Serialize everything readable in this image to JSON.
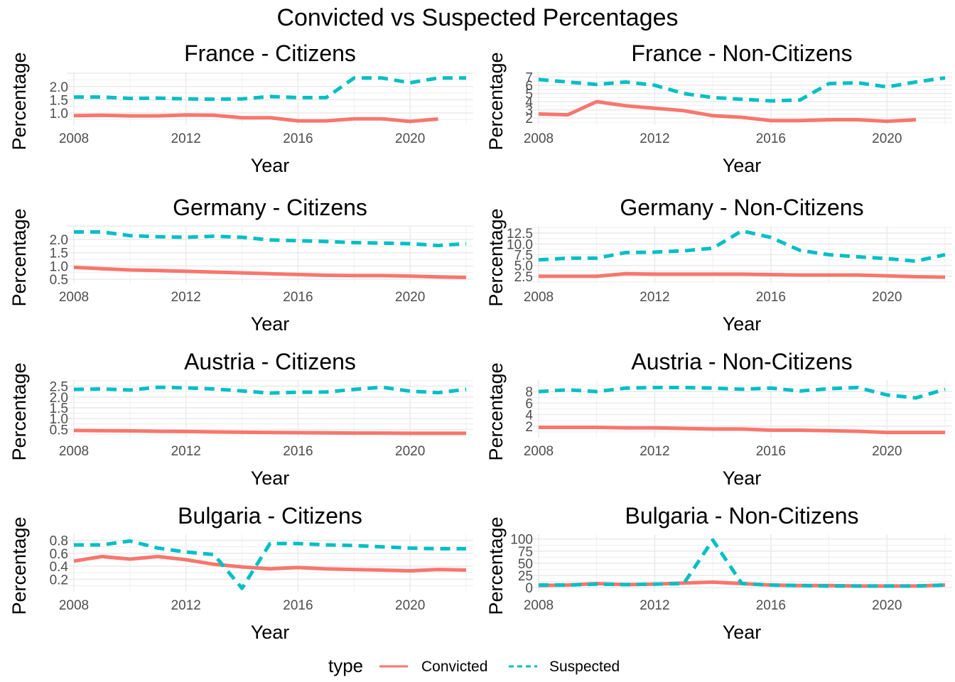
{
  "figure": {
    "title": "Convicted vs Suspected Percentages",
    "legend": {
      "title": "type",
      "placement": "bottom",
      "items": [
        {
          "name": "Convicted",
          "color": "#F8766D",
          "dash": "solid"
        },
        {
          "name": "Suspected",
          "color": "#00BFC4",
          "dash": "dashed"
        }
      ]
    }
  },
  "chart_data": [
    {
      "type": "line",
      "title": "France - Citizens",
      "xlabel": "Year",
      "ylabel": "Percentage",
      "xlim": [
        2008,
        2022
      ],
      "ylim": [
        0.65,
        2.45
      ],
      "xticks": [
        2008,
        2012,
        2016,
        2020
      ],
      "yticks": [
        1.0,
        1.5,
        2.0
      ],
      "yticklabels": [
        "1.0",
        "1.5",
        "2.0"
      ],
      "grid": true,
      "series": [
        {
          "name": "Convicted",
          "x": [
            2008,
            2009,
            2010,
            2011,
            2012,
            2013,
            2014,
            2015,
            2016,
            2017,
            2018,
            2019,
            2020,
            2021
          ],
          "values": [
            0.9,
            0.91,
            0.89,
            0.89,
            0.92,
            0.91,
            0.82,
            0.82,
            0.7,
            0.7,
            0.78,
            0.78,
            0.68,
            0.77
          ]
        },
        {
          "name": "Suspected",
          "x": [
            2008,
            2009,
            2010,
            2011,
            2012,
            2013,
            2014,
            2015,
            2016,
            2017,
            2018,
            2019,
            2020,
            2021,
            2022
          ],
          "values": [
            1.6,
            1.6,
            1.55,
            1.56,
            1.53,
            1.52,
            1.53,
            1.62,
            1.58,
            1.58,
            2.32,
            2.32,
            2.14,
            2.32,
            2.32
          ]
        }
      ]
    },
    {
      "type": "line",
      "title": "France - Non-Citizens",
      "xlabel": "Year",
      "ylabel": "Percentage",
      "xlim": [
        2008,
        2022
      ],
      "ylim": [
        1.5,
        7.3
      ],
      "xticks": [
        2008,
        2012,
        2016,
        2020
      ],
      "yticks": [
        2,
        3,
        4,
        5,
        6,
        7
      ],
      "yticklabels": [
        "2",
        "3",
        "4",
        "5",
        "6",
        "7"
      ],
      "grid": true,
      "series": [
        {
          "name": "Convicted",
          "x": [
            2008,
            2009,
            2010,
            2011,
            2012,
            2013,
            2014,
            2015,
            2016,
            2017,
            2018,
            2019,
            2020,
            2021
          ],
          "values": [
            2.5,
            2.4,
            4.0,
            3.5,
            3.2,
            2.9,
            2.3,
            2.1,
            1.7,
            1.7,
            1.8,
            1.8,
            1.6,
            1.8
          ]
        },
        {
          "name": "Suspected",
          "x": [
            2008,
            2009,
            2010,
            2011,
            2012,
            2013,
            2014,
            2015,
            2016,
            2017,
            2018,
            2019,
            2020,
            2021,
            2022
          ],
          "values": [
            6.7,
            6.4,
            6.1,
            6.4,
            6.0,
            5.0,
            4.5,
            4.3,
            4.1,
            4.2,
            6.2,
            6.3,
            5.8,
            6.4,
            6.9
          ]
        }
      ]
    },
    {
      "type": "line",
      "title": "Germany - Citizens",
      "xlabel": "Year",
      "ylabel": "Percentage",
      "xlim": [
        2008,
        2022
      ],
      "ylim": [
        0.45,
        2.4
      ],
      "xticks": [
        2008,
        2012,
        2016,
        2020
      ],
      "yticks": [
        0.5,
        1.0,
        1.5,
        2.0
      ],
      "yticklabels": [
        "0.5",
        "1.0",
        "1.5",
        "2.0"
      ],
      "grid": true,
      "series": [
        {
          "name": "Convicted",
          "x": [
            2008,
            2009,
            2010,
            2011,
            2012,
            2013,
            2014,
            2015,
            2016,
            2017,
            2018,
            2019,
            2020,
            2021,
            2022
          ],
          "values": [
            0.95,
            0.9,
            0.85,
            0.83,
            0.8,
            0.77,
            0.74,
            0.71,
            0.68,
            0.65,
            0.64,
            0.64,
            0.62,
            0.59,
            0.57
          ]
        },
        {
          "name": "Suspected",
          "x": [
            2008,
            2009,
            2010,
            2011,
            2012,
            2013,
            2014,
            2015,
            2016,
            2017,
            2018,
            2019,
            2020,
            2021,
            2022
          ],
          "values": [
            2.28,
            2.28,
            2.14,
            2.1,
            2.08,
            2.12,
            2.08,
            1.98,
            1.95,
            1.92,
            1.88,
            1.86,
            1.84,
            1.77,
            1.84
          ]
        }
      ]
    },
    {
      "type": "line",
      "title": "Germany - Non-Citizens",
      "xlabel": "Year",
      "ylabel": "Percentage",
      "xlim": [
        2008,
        2022
      ],
      "ylim": [
        1.5,
        13.5
      ],
      "xticks": [
        2008,
        2012,
        2016,
        2020
      ],
      "yticks": [
        2.5,
        5.0,
        7.5,
        10.0,
        12.5
      ],
      "yticklabels": [
        "2.5",
        "5.0",
        "7.5",
        "10.0",
        "12.5"
      ],
      "grid": true,
      "series": [
        {
          "name": "Convicted",
          "x": [
            2008,
            2009,
            2010,
            2011,
            2012,
            2013,
            2014,
            2015,
            2016,
            2017,
            2018,
            2019,
            2020,
            2021,
            2022
          ],
          "values": [
            2.5,
            2.5,
            2.5,
            3.1,
            3.0,
            3.0,
            3.0,
            3.0,
            2.9,
            2.8,
            2.8,
            2.8,
            2.6,
            2.4,
            2.3
          ]
        },
        {
          "name": "Suspected",
          "x": [
            2008,
            2009,
            2010,
            2011,
            2012,
            2013,
            2014,
            2015,
            2016,
            2017,
            2018,
            2019,
            2020,
            2021,
            2022
          ],
          "values": [
            6.3,
            6.7,
            6.7,
            8.0,
            8.1,
            8.4,
            9.0,
            13.0,
            11.5,
            8.5,
            7.5,
            7.0,
            6.6,
            6.0,
            7.5
          ]
        }
      ]
    },
    {
      "type": "line",
      "title": "Austria - Citizens",
      "xlabel": "Year",
      "ylabel": "Percentage",
      "xlim": [
        2008,
        2022
      ],
      "ylim": [
        0.25,
        2.65
      ],
      "xticks": [
        2008,
        2012,
        2016,
        2020
      ],
      "yticks": [
        0.5,
        1.0,
        1.5,
        2.0,
        2.5
      ],
      "yticklabels": [
        "0.5",
        "1.0",
        "1.5",
        "2.0",
        "2.5"
      ],
      "grid": true,
      "series": [
        {
          "name": "Convicted",
          "x": [
            2008,
            2009,
            2010,
            2011,
            2012,
            2013,
            2014,
            2015,
            2016,
            2017,
            2018,
            2019,
            2020,
            2021,
            2022
          ],
          "values": [
            0.45,
            0.44,
            0.43,
            0.41,
            0.4,
            0.38,
            0.37,
            0.36,
            0.35,
            0.34,
            0.33,
            0.33,
            0.32,
            0.32,
            0.32
          ]
        },
        {
          "name": "Suspected",
          "x": [
            2008,
            2009,
            2010,
            2011,
            2012,
            2013,
            2014,
            2015,
            2016,
            2017,
            2018,
            2019,
            2020,
            2021,
            2022
          ],
          "values": [
            2.35,
            2.37,
            2.32,
            2.45,
            2.42,
            2.37,
            2.28,
            2.18,
            2.22,
            2.23,
            2.35,
            2.45,
            2.27,
            2.2,
            2.35
          ]
        }
      ]
    },
    {
      "type": "line",
      "title": "Austria - Non-Citizens",
      "xlabel": "Year",
      "ylabel": "Percentage",
      "xlim": [
        2008,
        2022
      ],
      "ylim": [
        0.5,
        9.5
      ],
      "xticks": [
        2008,
        2012,
        2016,
        2020
      ],
      "yticks": [
        2,
        4,
        6,
        8
      ],
      "yticklabels": [
        "2",
        "4",
        "6",
        "8"
      ],
      "grid": true,
      "series": [
        {
          "name": "Convicted",
          "x": [
            2008,
            2009,
            2010,
            2011,
            2012,
            2013,
            2014,
            2015,
            2016,
            2017,
            2018,
            2019,
            2020,
            2021,
            2022
          ],
          "values": [
            1.8,
            1.8,
            1.8,
            1.7,
            1.7,
            1.6,
            1.5,
            1.5,
            1.3,
            1.3,
            1.2,
            1.1,
            0.9,
            0.9,
            0.9
          ]
        },
        {
          "name": "Suspected",
          "x": [
            2008,
            2009,
            2010,
            2011,
            2012,
            2013,
            2014,
            2015,
            2016,
            2017,
            2018,
            2019,
            2020,
            2021,
            2022
          ],
          "values": [
            8.0,
            8.3,
            8.0,
            8.6,
            8.7,
            8.7,
            8.6,
            8.4,
            8.6,
            8.1,
            8.5,
            8.7,
            7.4,
            6.9,
            8.4
          ]
        }
      ]
    },
    {
      "type": "line",
      "title": "Bulgaria - Citizens",
      "xlabel": "Year",
      "ylabel": "Percentage",
      "xlim": [
        2008,
        2022
      ],
      "ylim": [
        0.05,
        0.85
      ],
      "xticks": [
        2008,
        2012,
        2016,
        2020
      ],
      "yticks": [
        0.2,
        0.4,
        0.6,
        0.8
      ],
      "yticklabels": [
        "0.2",
        "0.4",
        "0.6",
        "0.8"
      ],
      "grid": true,
      "series": [
        {
          "name": "Convicted",
          "x": [
            2008,
            2009,
            2010,
            2011,
            2012,
            2013,
            2014,
            2015,
            2016,
            2017,
            2018,
            2019,
            2020,
            2021,
            2022
          ],
          "values": [
            0.48,
            0.55,
            0.51,
            0.55,
            0.5,
            0.43,
            0.39,
            0.36,
            0.38,
            0.36,
            0.35,
            0.34,
            0.33,
            0.35,
            0.34
          ]
        },
        {
          "name": "Suspected",
          "x": [
            2008,
            2009,
            2010,
            2011,
            2012,
            2013,
            2014,
            2015,
            2016,
            2017,
            2018,
            2019,
            2020,
            2021,
            2022
          ],
          "values": [
            0.73,
            0.73,
            0.79,
            0.68,
            0.62,
            0.58,
            0.06,
            0.75,
            0.75,
            0.73,
            0.72,
            0.7,
            0.68,
            0.67,
            0.67
          ]
        }
      ]
    },
    {
      "type": "line",
      "title": "Bulgaria - Non-Citizens",
      "xlabel": "Year",
      "ylabel": "Percentage",
      "xlim": [
        2008,
        2022
      ],
      "ylim": [
        -3,
        104
      ],
      "xticks": [
        2008,
        2012,
        2016,
        2020
      ],
      "yticks": [
        0,
        25,
        50,
        75,
        100
      ],
      "yticklabels": [
        "0",
        "25",
        "50",
        "75",
        "100"
      ],
      "grid": true,
      "series": [
        {
          "name": "Convicted",
          "x": [
            2008,
            2009,
            2010,
            2011,
            2012,
            2013,
            2014,
            2015,
            2016,
            2017,
            2018,
            2019,
            2020,
            2021,
            2022
          ],
          "values": [
            4,
            5,
            8,
            6,
            7,
            9,
            11,
            8,
            5,
            4,
            4,
            3,
            3,
            3,
            5
          ]
        },
        {
          "name": "Suspected",
          "x": [
            2008,
            2009,
            2010,
            2011,
            2012,
            2013,
            2014,
            2015,
            2016,
            2017,
            2018,
            2019,
            2020,
            2021,
            2022
          ],
          "values": [
            5,
            5,
            7,
            6,
            7,
            8,
            98,
            8,
            5,
            4,
            3,
            3,
            3,
            3,
            5
          ]
        }
      ]
    }
  ]
}
